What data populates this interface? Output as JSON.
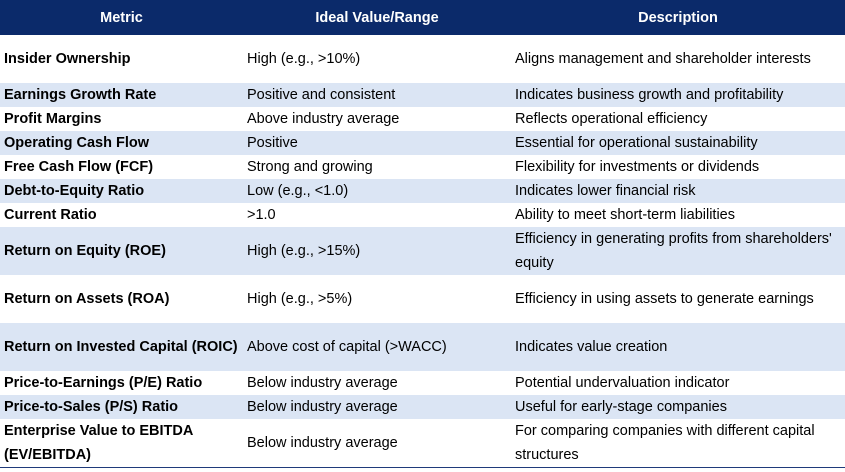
{
  "table": {
    "headers": [
      "Metric",
      "Ideal Value/Range",
      "Description"
    ],
    "rows": [
      {
        "metric": "Insider Ownership",
        "ideal": "High (e.g., >10%)",
        "description": "Aligns management and shareholder interests"
      },
      {
        "metric": "Earnings Growth Rate",
        "ideal": "Positive and consistent",
        "description": "Indicates business growth and profitability"
      },
      {
        "metric": "Profit Margins",
        "ideal": "Above industry average",
        "description": "Reflects operational efficiency"
      },
      {
        "metric": "Operating Cash Flow",
        "ideal": "Positive",
        "description": "Essential for operational sustainability"
      },
      {
        "metric": "Free Cash Flow (FCF)",
        "ideal": "Strong and growing",
        "description": "Flexibility for investments or dividends"
      },
      {
        "metric": "Debt-to-Equity Ratio",
        "ideal": "Low (e.g., <1.0)",
        "description": "Indicates lower financial risk"
      },
      {
        "metric": "Current Ratio",
        "ideal": ">1.0",
        "description": "Ability to meet short-term liabilities"
      },
      {
        "metric": "Return on Equity (ROE)",
        "ideal": "High (e.g., >15%)",
        "description": "Efficiency in generating profits from shareholders' equity"
      },
      {
        "metric": "Return on Assets (ROA)",
        "ideal": "High (e.g., >5%)",
        "description": "Efficiency in using assets to generate earnings"
      },
      {
        "metric": "Return on Invested Capital (ROIC)",
        "ideal": "Above cost of capital (>WACC)",
        "description": "Indicates value creation"
      },
      {
        "metric": "Price-to-Earnings (P/E) Ratio",
        "ideal": "Below industry average",
        "description": "Potential undervaluation indicator"
      },
      {
        "metric": "Price-to-Sales (P/S) Ratio",
        "ideal": "Below industry average",
        "description": "Useful for early-stage companies"
      },
      {
        "metric": "Enterprise Value to EBITDA (EV/EBITDA)",
        "ideal": "Below industry average",
        "description": "For comparing companies with different capital structures"
      }
    ]
  },
  "colors": {
    "header_bg": "#0b2a6a",
    "header_text": "#ffffff",
    "band_bg": "#dbe5f4"
  }
}
